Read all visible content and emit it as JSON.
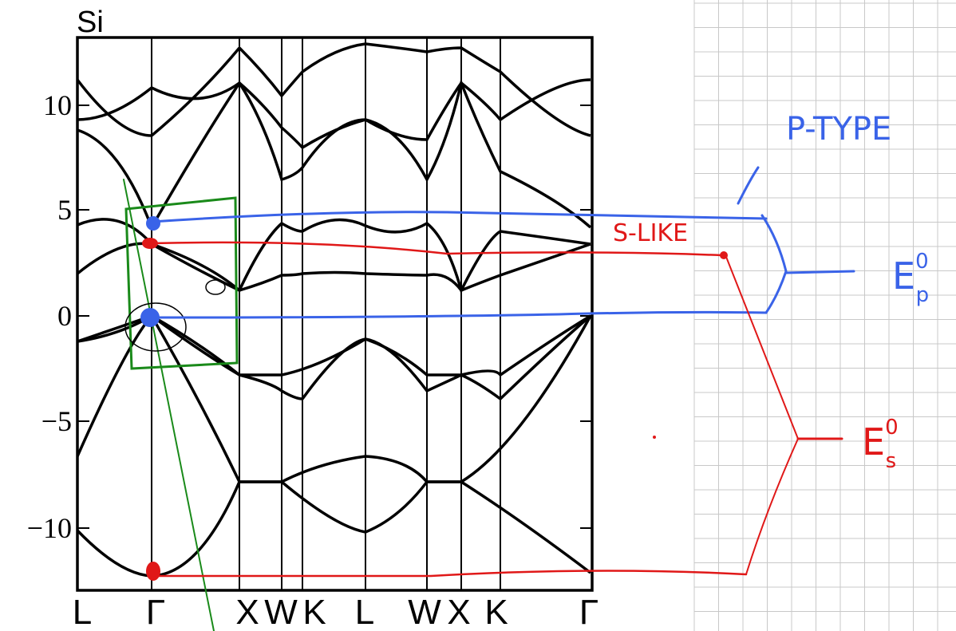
{
  "figure": {
    "title": "Si",
    "y_tick_labels": [
      "10",
      "5",
      "0",
      "−5",
      "−10"
    ],
    "k_point_labels": [
      "L",
      "Γ",
      "X",
      "W",
      "K",
      "L",
      "W",
      "X",
      "K",
      "Γ"
    ]
  },
  "annotations": {
    "p_type": "P-TYPE",
    "s_like": "S-LIKE",
    "e_p": {
      "symbol": "E",
      "superscript": "0",
      "subscript": "p"
    },
    "e_s": {
      "symbol": "E",
      "superscript": "0",
      "subscript": "s"
    }
  }
}
